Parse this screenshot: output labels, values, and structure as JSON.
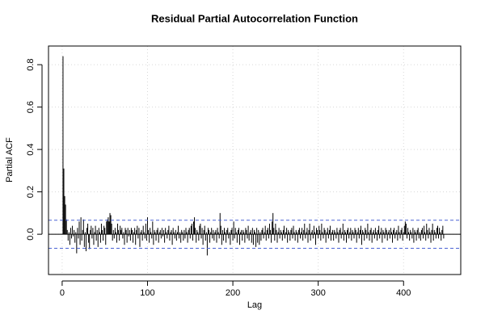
{
  "chart_data": {
    "type": "bar",
    "title": "Residual Partial Autocorrelation Function",
    "x_label": "Lag",
    "y_label": "Partial ACF",
    "x": [
      1,
      2,
      3,
      4,
      5,
      6,
      7,
      8,
      9,
      10,
      11,
      12,
      13,
      14,
      15,
      16,
      17,
      18,
      19,
      20,
      21,
      22,
      23,
      24,
      25,
      26,
      27,
      28,
      29,
      30,
      31,
      32,
      33,
      34,
      35,
      36,
      37,
      38,
      39,
      40,
      41,
      42,
      43,
      44,
      45,
      46,
      47,
      48,
      49,
      50,
      51,
      52,
      53,
      54,
      55,
      56,
      57,
      58,
      59,
      60,
      61,
      62,
      63,
      64,
      65,
      66,
      67,
      68,
      69,
      70,
      71,
      72,
      73,
      74,
      75,
      76,
      77,
      78,
      79,
      80,
      81,
      82,
      83,
      84,
      85,
      86,
      87,
      88,
      89,
      90,
      91,
      92,
      93,
      94,
      95,
      96,
      97,
      98,
      99,
      100,
      101,
      102,
      103,
      104,
      105,
      106,
      107,
      108,
      109,
      110,
      111,
      112,
      113,
      114,
      115,
      116,
      117,
      118,
      119,
      120,
      121,
      122,
      123,
      124,
      125,
      126,
      127,
      128,
      129,
      130,
      131,
      132,
      133,
      134,
      135,
      136,
      137,
      138,
      139,
      140,
      141,
      142,
      143,
      144,
      145,
      146,
      147,
      148,
      149,
      150,
      151,
      152,
      153,
      154,
      155,
      156,
      157,
      158,
      159,
      160,
      161,
      162,
      163,
      164,
      165,
      166,
      167,
      168,
      169,
      170,
      171,
      172,
      173,
      174,
      175,
      176,
      177,
      178,
      179,
      180,
      181,
      182,
      183,
      184,
      185,
      186,
      187,
      188,
      189,
      190,
      191,
      192,
      193,
      194,
      195,
      196,
      197,
      198,
      199,
      200,
      201,
      202,
      203,
      204,
      205,
      206,
      207,
      208,
      209,
      210,
      211,
      212,
      213,
      214,
      215,
      216,
      217,
      218,
      219,
      220,
      221,
      222,
      223,
      224,
      225,
      226,
      227,
      228,
      229,
      230,
      231,
      232,
      233,
      234,
      235,
      236,
      237,
      238,
      239,
      240,
      241,
      242,
      243,
      244,
      245,
      246,
      247,
      248,
      249,
      250,
      251,
      252,
      253,
      254,
      255,
      256,
      257,
      258,
      259,
      260,
      261,
      262,
      263,
      264,
      265,
      266,
      267,
      268,
      269,
      270,
      271,
      272,
      273,
      274,
      275,
      276,
      277,
      278,
      279,
      280,
      281,
      282,
      283,
      284,
      285,
      286,
      287,
      288,
      289,
      290,
      291,
      292,
      293,
      294,
      295,
      296,
      297,
      298,
      299,
      300,
      301,
      302,
      303,
      304,
      305,
      306,
      307,
      308,
      309,
      310,
      311,
      312,
      313,
      314,
      315,
      316,
      317,
      318,
      319,
      320,
      321,
      322,
      323,
      324,
      325,
      326,
      327,
      328,
      329,
      330,
      331,
      332,
      333,
      334,
      335,
      336,
      337,
      338,
      339,
      340,
      341,
      342,
      343,
      344,
      345,
      346,
      347,
      348,
      349,
      350,
      351,
      352,
      353,
      354,
      355,
      356,
      357,
      358,
      359,
      360,
      361,
      362,
      363,
      364,
      365,
      366,
      367,
      368,
      369,
      370,
      371,
      372,
      373,
      374,
      375,
      376,
      377,
      378,
      379,
      380,
      381,
      382,
      383,
      384,
      385,
      386,
      387,
      388,
      389,
      390,
      391,
      392,
      393,
      394,
      395,
      396,
      397,
      398,
      399,
      400,
      401,
      402,
      403,
      404,
      405,
      406,
      407,
      408,
      409,
      410,
      411,
      412,
      413,
      414,
      415,
      416,
      417,
      418,
      419,
      420,
      421,
      422,
      423,
      424,
      425,
      426,
      427,
      428,
      429,
      430,
      431,
      432,
      433,
      434,
      435,
      436,
      437,
      438,
      439,
      440,
      441,
      442,
      443,
      444,
      445,
      446,
      447
    ],
    "values": [
      0.84,
      0.31,
      0.18,
      0.14,
      0.07,
      0.02,
      -0.03,
      0.01,
      -0.05,
      0.03,
      -0.02,
      0.04,
      -0.01,
      0.02,
      -0.04,
      0.01,
      -0.09,
      0.03,
      -0.02,
      0.06,
      -0.05,
      0.08,
      -0.03,
      0.02,
      0.07,
      -0.06,
      0.01,
      -0.08,
      0.03,
      0.05,
      -0.04,
      -0.07,
      0.02,
      0.04,
      -0.02,
      0.03,
      -0.05,
      0.01,
      0.04,
      -0.03,
      0.02,
      -0.06,
      0.03,
      0.01,
      -0.04,
      0.05,
      0.02,
      -0.03,
      0.04,
      0.03,
      -0.05,
      0.06,
      0.07,
      0.08,
      0.06,
      0.1,
      0.09,
      0.05,
      -0.03,
      0.02,
      -0.02,
      0.03,
      0.01,
      -0.04,
      0.05,
      0.02,
      -0.03,
      0.04,
      0.02,
      0.03,
      -0.02,
      0.01,
      -0.05,
      0.03,
      0.02,
      -0.04,
      0.03,
      -0.01,
      0.02,
      -0.03,
      0.03,
      0.02,
      -0.04,
      0.01,
      0.03,
      -0.05,
      0.02,
      0.04,
      -0.02,
      0.03,
      -0.06,
      0.01,
      0.02,
      -0.03,
      0.04,
      0.01,
      -0.02,
      0.05,
      -0.03,
      0.08,
      0.02,
      -0.04,
      0.03,
      0.01,
      -0.02,
      0.06,
      -0.05,
      0.02,
      0.01,
      -0.03,
      0.02,
      0.03,
      -0.04,
      0.01,
      0.02,
      -0.02,
      0.03,
      -0.01,
      0.02,
      -0.04,
      0.03,
      0.01,
      -0.02,
      0.02,
      0.04,
      -0.03,
      0.01,
      0.02,
      -0.05,
      0.03,
      0.01,
      -0.02,
      0.02,
      -0.03,
      0.01,
      0.04,
      -0.02,
      0.01,
      -0.04,
      0.02,
      0.01,
      -0.03,
      0.02,
      -0.02,
      0.03,
      0.01,
      -0.04,
      0.02,
      0.03,
      -0.02,
      0.04,
      0.05,
      -0.03,
      0.06,
      0.08,
      0.03,
      -0.04,
      0.02,
      0.01,
      -0.03,
      0.04,
      0.05,
      -0.02,
      0.03,
      -0.05,
      0.02,
      0.04,
      -0.03,
      0.01,
      -0.1,
      0.03,
      0.02,
      -0.04,
      0.01,
      0.03,
      -0.02,
      0.02,
      -0.03,
      0.01,
      0.02,
      -0.04,
      0.03,
      0.01,
      -0.02,
      0.1,
      0.04,
      -0.05,
      0.02,
      -0.03,
      0.03,
      0.01,
      -0.04,
      0.02,
      0.03,
      -0.02,
      0.01,
      -0.05,
      0.02,
      0.03,
      -0.03,
      0.06,
      -0.02,
      0.03,
      0.01,
      -0.04,
      0.02,
      0.03,
      -0.05,
      0.01,
      0.02,
      -0.03,
      0.02,
      0.01,
      -0.04,
      0.03,
      0.02,
      -0.02,
      0.04,
      -0.03,
      0.01,
      0.02,
      -0.04,
      0.03,
      -0.05,
      0.02,
      0.01,
      -0.06,
      0.03,
      -0.04,
      0.02,
      -0.05,
      0.01,
      -0.03,
      0.02,
      0.03,
      -0.02,
      0.01,
      0.04,
      -0.03,
      0.02,
      0.03,
      -0.02,
      0.05,
      0.02,
      -0.04,
      0.06,
      0.1,
      0.03,
      -0.03,
      0.05,
      0.02,
      -0.04,
      0.01,
      0.03,
      -0.02,
      0.02,
      0.01,
      -0.03,
      0.02,
      0.04,
      -0.02,
      0.01,
      0.03,
      -0.04,
      0.02,
      0.01,
      -0.03,
      0.02,
      0.03,
      -0.02,
      0.04,
      0.01,
      -0.03,
      0.02,
      0.01,
      -0.04,
      0.02,
      0.03,
      -0.02,
      0.01,
      0.03,
      -0.03,
      0.02,
      0.05,
      -0.02,
      0.01,
      0.03,
      -0.04,
      0.02,
      0.05,
      -0.03,
      0.01,
      0.02,
      -0.02,
      0.04,
      0.01,
      -0.05,
      0.03,
      0.02,
      -0.02,
      0.04,
      0.02,
      -0.03,
      0.05,
      0.01,
      -0.02,
      0.03,
      0.02,
      -0.04,
      0.01,
      0.03,
      -0.02,
      0.02,
      0.04,
      -0.03,
      0.01,
      0.02,
      -0.03,
      0.02,
      0.01,
      -0.02,
      0.03,
      0.01,
      -0.04,
      0.02,
      0.03,
      -0.02,
      0.01,
      0.05,
      -0.03,
      0.02,
      0.01,
      -0.04,
      0.02,
      0.03,
      -0.02,
      0.01,
      0.03,
      -0.03,
      0.02,
      0.01,
      -0.02,
      0.03,
      0.02,
      -0.04,
      0.01,
      0.03,
      -0.02,
      0.02,
      0.04,
      -0.05,
      0.02,
      0.01,
      -0.03,
      0.03,
      0.02,
      -0.02,
      0.05,
      0.01,
      -0.03,
      0.02,
      0.03,
      -0.04,
      0.01,
      0.02,
      -0.02,
      0.03,
      0.01,
      -0.03,
      0.02,
      0.04,
      -0.02,
      0.01,
      0.03,
      -0.04,
      0.02,
      0.01,
      -0.02,
      0.03,
      0.02,
      -0.03,
      0.01,
      0.02,
      -0.02,
      0.03,
      0.01,
      -0.04,
      0.02,
      0.03,
      -0.02,
      0.01,
      0.02,
      -0.03,
      0.04,
      0.01,
      -0.02,
      0.02,
      0.03,
      -0.03,
      0.01,
      0.04,
      0.06,
      0.05,
      -0.02,
      0.03,
      0.01,
      -0.03,
      0.02,
      0.01,
      -0.02,
      0.03,
      -0.04,
      0.02,
      0.01,
      -0.03,
      0.02,
      0.03,
      -0.02,
      0.01,
      -0.03,
      0.02,
      0.03,
      -0.02,
      0.04,
      0.01,
      -0.03,
      0.05,
      0.02,
      -0.02,
      0.03,
      0.01,
      -0.04,
      0.02,
      0.05,
      -0.03,
      0.02,
      0.01,
      -0.02,
      0.03,
      0.04,
      -0.02,
      0.03,
      0.01,
      -0.03,
      0.02,
      0.04,
      -0.02
    ],
    "color": "#000000",
    "confidence_bounds": [
      -0.066,
      0.066
    ],
    "confidence_color": "#4a62d4",
    "xlim": [
      -16,
      467
    ],
    "ylim": [
      -0.19,
      0.888
    ],
    "xticks": [
      0,
      100,
      200,
      300,
      400
    ],
    "yticks": [
      {
        "value": 0,
        "label": "0.0"
      },
      0.2,
      0.4,
      0.6,
      0.8
    ],
    "grid": true
  }
}
